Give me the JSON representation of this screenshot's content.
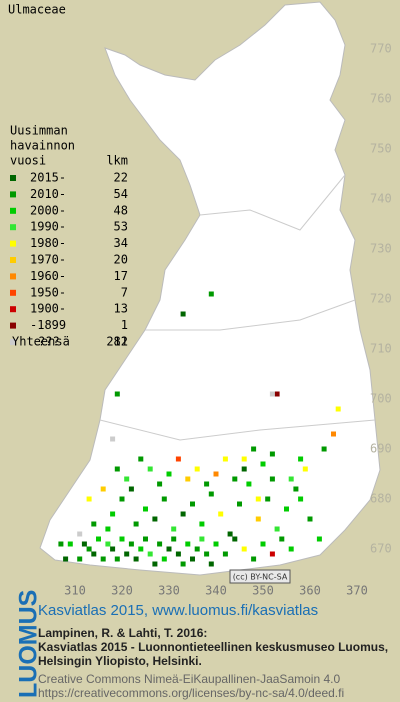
{
  "title": "Ulmaceae",
  "legend": {
    "heading": [
      "Uusimman",
      "havainnon",
      "vuosi"
    ],
    "count_heading": "lkm",
    "entries": [
      {
        "label": "2015-",
        "count": 22,
        "color": "#006600"
      },
      {
        "label": "2010-",
        "count": 54,
        "color": "#009900"
      },
      {
        "label": "2000-",
        "count": 48,
        "color": "#00cc00"
      },
      {
        "label": "1990-",
        "count": 53,
        "color": "#33e633"
      },
      {
        "label": "1980-",
        "count": 34,
        "color": "#ffff00"
      },
      {
        "label": "1970-",
        "count": 20,
        "color": "#ffcc00"
      },
      {
        "label": "1960-",
        "count": 17,
        "color": "#ff8800"
      },
      {
        "label": "1950-",
        "count": 7,
        "color": "#ff4400"
      },
      {
        "label": "1900-",
        "count": 13,
        "color": "#cc0000"
      },
      {
        "label": "-1899",
        "count": 1,
        "color": "#880000"
      },
      {
        "label": "???",
        "count": 12,
        "color": "#cccccc"
      }
    ],
    "total_label": "Yhteensä",
    "total": 281
  },
  "yticks": [
    770,
    760,
    750,
    740,
    730,
    720,
    710,
    700,
    690,
    680,
    670
  ],
  "xticks": [
    310,
    320,
    330,
    340,
    350,
    360,
    370
  ],
  "points": [
    [
      307,
      671,
      1
    ],
    [
      308,
      668,
      0
    ],
    [
      309,
      671,
      2
    ],
    [
      311,
      668,
      1
    ],
    [
      312,
      671,
      0
    ],
    [
      313,
      670,
      1
    ],
    [
      314,
      669,
      0
    ],
    [
      315,
      672,
      2
    ],
    [
      316,
      668,
      1
    ],
    [
      317,
      671,
      3
    ],
    [
      318,
      670,
      0
    ],
    [
      319,
      668,
      1
    ],
    [
      320,
      672,
      2
    ],
    [
      321,
      669,
      0
    ],
    [
      322,
      671,
      1
    ],
    [
      323,
      668,
      0
    ],
    [
      324,
      670,
      2
    ],
    [
      325,
      672,
      1
    ],
    [
      326,
      669,
      3
    ],
    [
      327,
      667,
      0
    ],
    [
      328,
      671,
      1
    ],
    [
      329,
      668,
      2
    ],
    [
      330,
      670,
      0
    ],
    [
      331,
      672,
      1
    ],
    [
      332,
      669,
      0
    ],
    [
      333,
      667,
      1
    ],
    [
      334,
      671,
      2
    ],
    [
      335,
      668,
      0
    ],
    [
      336,
      670,
      1
    ],
    [
      337,
      672,
      3
    ],
    [
      338,
      669,
      1
    ],
    [
      339,
      667,
      0
    ],
    [
      340,
      671,
      2
    ],
    [
      342,
      669,
      1
    ],
    [
      344,
      672,
      0
    ],
    [
      346,
      670,
      4
    ],
    [
      348,
      668,
      1
    ],
    [
      350,
      671,
      2
    ],
    [
      352,
      669,
      8
    ],
    [
      354,
      672,
      1
    ],
    [
      356,
      670,
      2
    ],
    [
      323,
      675,
      1
    ],
    [
      325,
      678,
      2
    ],
    [
      327,
      676,
      0
    ],
    [
      329,
      680,
      1
    ],
    [
      331,
      674,
      3
    ],
    [
      333,
      677,
      0
    ],
    [
      335,
      679,
      1
    ],
    [
      337,
      675,
      2
    ],
    [
      339,
      681,
      1
    ],
    [
      341,
      677,
      4
    ],
    [
      343,
      673,
      0
    ],
    [
      345,
      679,
      1
    ],
    [
      347,
      683,
      2
    ],
    [
      349,
      676,
      5
    ],
    [
      351,
      680,
      1
    ],
    [
      353,
      674,
      3
    ],
    [
      355,
      678,
      2
    ],
    [
      357,
      682,
      1
    ],
    [
      359,
      686,
      4
    ],
    [
      318,
      677,
      2
    ],
    [
      320,
      680,
      1
    ],
    [
      321,
      684,
      3
    ],
    [
      322,
      682,
      0
    ],
    [
      319,
      686,
      1
    ],
    [
      317,
      674,
      2
    ],
    [
      314,
      675,
      1
    ],
    [
      334,
      684,
      5
    ],
    [
      336,
      686,
      4
    ],
    [
      338,
      683,
      1
    ],
    [
      340,
      685,
      6
    ],
    [
      342,
      688,
      4
    ],
    [
      344,
      684,
      1
    ],
    [
      330,
      685,
      2
    ],
    [
      328,
      683,
      1
    ],
    [
      326,
      686,
      3
    ],
    [
      324,
      688,
      1
    ],
    [
      332,
      688,
      7
    ],
    [
      346,
      688,
      4
    ],
    [
      348,
      690,
      1
    ],
    [
      350,
      687,
      2
    ],
    [
      352,
      684,
      1
    ],
    [
      356,
      684,
      3
    ],
    [
      358,
      680,
      2
    ],
    [
      360,
      676,
      1
    ],
    [
      362,
      672,
      2
    ],
    [
      311,
      673,
      10
    ],
    [
      316,
      682,
      5
    ],
    [
      313,
      680,
      4
    ],
    [
      365,
      693,
      6
    ],
    [
      366,
      698,
      4
    ],
    [
      363,
      690,
      1
    ],
    [
      358,
      688,
      2
    ],
    [
      352,
      689,
      1
    ],
    [
      339,
      721,
      1
    ],
    [
      333,
      717,
      0
    ],
    [
      353,
      701,
      9
    ],
    [
      352,
      701,
      10
    ],
    [
      319,
      701,
      1
    ],
    [
      318,
      692,
      10
    ],
    [
      346,
      686,
      0
    ],
    [
      349,
      680,
      4
    ]
  ],
  "license": "(cc) BY-NC-SA",
  "footer": {
    "logo": "LUOMUS",
    "link": "Kasviatlas 2015, www.luomus.fi/kasviatlas",
    "citation": [
      "Lampinen, R. & Lahti, T. 2016:",
      "Kasviatlas 2015 - Luonnontieteellinen keskusmuseo Luomus,",
      "Helsingin Yliopisto, Helsinki."
    ],
    "licence_lines": [
      "Creative Commons Nimeä-EiKaupallinen-JaaSamoin 4.0",
      "https://creativecommons.org/licenses/by-nc-sa/4.0/deed.fi"
    ]
  }
}
